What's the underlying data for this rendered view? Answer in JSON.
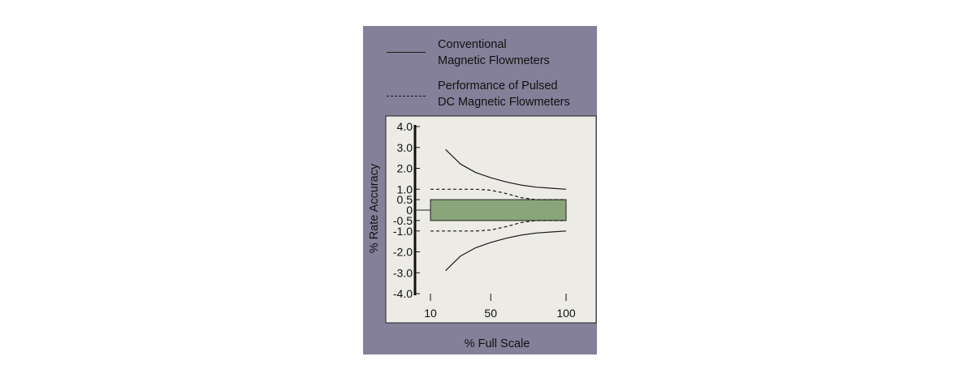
{
  "legend": [
    {
      "line1": "Conventional",
      "line2": "Magnetic Flowmeters",
      "style": "solid"
    },
    {
      "line1": "Performance of Pulsed",
      "line2": "DC Magnetic Flowmeters",
      "style": "dashed"
    }
  ],
  "colors": {
    "panel": "#858099",
    "plot_bg": "#ecebe6",
    "band_fill": "#8aa57a",
    "line": "#1a1a1a"
  },
  "chart_data": {
    "type": "line",
    "xlabel": "% Full Scale",
    "ylabel": "% Rate Accuracy",
    "x_ticks": [
      10,
      50,
      100
    ],
    "y_ticks": [
      "4.0",
      "3.0",
      "2.0",
      "1.0",
      "0.5",
      "0",
      "-0.5",
      "-1.0",
      "-2.0",
      "-3.0",
      "-4.0"
    ],
    "ylim": [
      -4,
      4
    ],
    "xlim": [
      10,
      100
    ],
    "grid": false,
    "legend_position": "top",
    "series": [
      {
        "name": "Conventional Magnetic Flowmeters",
        "style": "solid",
        "x": [
          20,
          30,
          40,
          50,
          60,
          70,
          80,
          90,
          100
        ],
        "upper": [
          2.9,
          2.2,
          1.8,
          1.55,
          1.35,
          1.2,
          1.1,
          1.05,
          1.0
        ],
        "lower": [
          -2.9,
          -2.2,
          -1.8,
          -1.55,
          -1.35,
          -1.2,
          -1.1,
          -1.05,
          -1.0
        ]
      },
      {
        "name": "Performance of Pulsed DC Magnetic Flowmeters",
        "style": "dashed",
        "x": [
          10,
          20,
          30,
          40,
          50,
          60,
          70,
          80,
          90,
          100
        ],
        "upper": [
          1.0,
          1.0,
          1.0,
          1.0,
          0.95,
          0.8,
          0.6,
          0.5,
          0.5,
          0.5
        ],
        "lower": [
          -1.0,
          -1.0,
          -1.0,
          -1.0,
          -0.95,
          -0.8,
          -0.6,
          -0.5,
          -0.5,
          -0.5
        ]
      }
    ],
    "band": {
      "x": [
        10,
        100
      ],
      "y": [
        -0.5,
        0.5
      ]
    }
  }
}
